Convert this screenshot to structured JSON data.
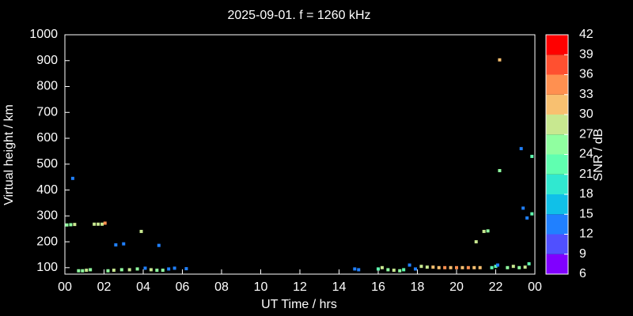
{
  "chart_data": {
    "type": "scatter",
    "title": "2025-09-01. f = 1260 kHz",
    "x_label": "UT Time / hrs",
    "y_label": "Virtual height / km",
    "colorbar_label": "SNR / dB",
    "xlim": [
      0,
      24
    ],
    "xticks": [
      {
        "value": 0,
        "label": "00"
      },
      {
        "value": 2,
        "label": "02"
      },
      {
        "value": 4,
        "label": "04"
      },
      {
        "value": 6,
        "label": "06"
      },
      {
        "value": 8,
        "label": "08"
      },
      10,
      12,
      14,
      16,
      18,
      20,
      22,
      {
        "value": 24,
        "label": "00"
      }
    ],
    "ylim": [
      75,
      1000
    ],
    "yticks": [
      100,
      200,
      300,
      400,
      500,
      600,
      700,
      800,
      900,
      1000
    ],
    "clim": [
      6,
      42
    ],
    "cticks": [
      6,
      9,
      12,
      15,
      18,
      21,
      24,
      27,
      30,
      33,
      36,
      39,
      42
    ],
    "colors": [
      "#8000ff",
      "#5050ff",
      "#2080ff",
      "#10c0e8",
      "#30e8d0",
      "#60ffb0",
      "#90ffa0",
      "#c8e890",
      "#f8c070",
      "#ff9050",
      "#ff5030",
      "#ff0000"
    ],
    "series": [
      {
        "x": [
          0.1,
          0.3,
          0.5,
          0.4,
          0.7,
          0.9,
          1.1,
          1.3,
          1.5,
          1.7,
          1.9,
          2.05,
          2.6,
          3.0,
          3.9,
          4.8,
          2.2,
          2.5,
          2.9,
          3.3,
          3.7,
          4.1,
          4.4,
          4.7,
          5.0,
          5.3,
          5.6,
          6.2,
          14.8,
          15.0,
          16.0,
          16.2,
          16.5,
          16.8,
          17.1,
          17.3,
          17.6,
          17.9,
          18.2,
          18.5,
          18.8,
          19.1,
          19.4,
          19.7,
          20.0,
          20.3,
          20.6,
          20.9,
          21.2,
          21.0,
          21.4,
          21.6,
          21.8,
          22.0,
          22.1,
          22.2,
          22.2,
          22.6,
          22.9,
          23.2,
          23.5,
          23.3,
          23.4,
          23.6,
          23.85,
          23.85,
          23.7
        ],
        "values": [
          265,
          266,
          267,
          445,
          88,
          88,
          90,
          92,
          268,
          268,
          268,
          272,
          188,
          192,
          240,
          186,
          88,
          90,
          92,
          92,
          95,
          98,
          92,
          90,
          90,
          95,
          98,
          96,
          95,
          92,
          95,
          100,
          92,
          90,
          88,
          92,
          110,
          95,
          105,
          102,
          102,
          100,
          100,
          100,
          100,
          100,
          100,
          100,
          100,
          200,
          240,
          242,
          100,
          105,
          110,
          903,
          475,
          100,
          105,
          100,
          102,
          560,
          330,
          292,
          530,
          308,
          115
        ],
        "snr": [
          25,
          25,
          28,
          13,
          25,
          25,
          28,
          25,
          28,
          28,
          28,
          34,
          13,
          13,
          28,
          13,
          25,
          28,
          25,
          28,
          25,
          13,
          28,
          25,
          25,
          13,
          13,
          13,
          13,
          13,
          22,
          28,
          25,
          28,
          25,
          22,
          13,
          13,
          28,
          28,
          31,
          31,
          34,
          31,
          34,
          31,
          34,
          31,
          31,
          28,
          28,
          25,
          22,
          22,
          13,
          31,
          25,
          25,
          28,
          25,
          28,
          13,
          13,
          13,
          22,
          22,
          22
        ]
      }
    ]
  }
}
